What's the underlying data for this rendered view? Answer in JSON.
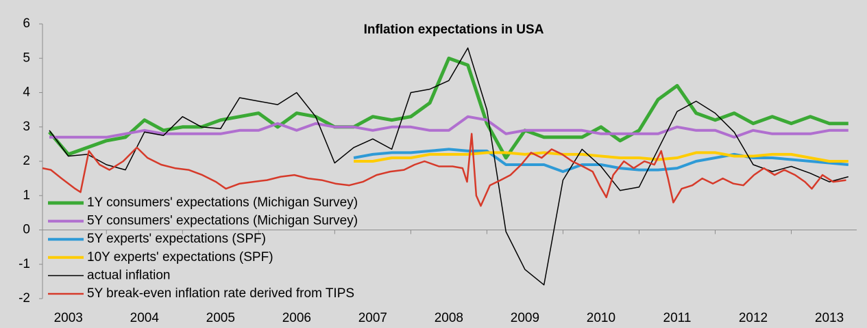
{
  "chart_data": {
    "type": "line",
    "title": "Inflation expectations in USA",
    "xlim": [
      2003.16,
      2013.86
    ],
    "ylim": [
      -2,
      6
    ],
    "yticks": [
      -2,
      -1,
      0,
      1,
      2,
      3,
      4,
      5,
      6
    ],
    "xticks": [
      {
        "value": 2003.5,
        "label": "2003"
      },
      {
        "value": 2004.5,
        "label": "2004"
      },
      {
        "value": 2005.5,
        "label": "2005"
      },
      {
        "value": 2006.5,
        "label": "2006"
      },
      {
        "value": 2007.5,
        "label": "2007"
      },
      {
        "value": 2008.5,
        "label": "2008"
      },
      {
        "value": 2009.5,
        "label": "2009"
      },
      {
        "value": 2010.5,
        "label": "2010"
      },
      {
        "value": 2011.5,
        "label": "2011"
      },
      {
        "value": 2012.5,
        "label": "2012"
      },
      {
        "value": 2013.5,
        "label": "2013"
      }
    ],
    "grid": false,
    "legend": "bottom-left",
    "series": [
      {
        "name": "1Y consumers' expectations (Michigan Survey)",
        "color": "#3ba935",
        "width": 5,
        "x": [
          2003.25,
          2003.5,
          2003.75,
          2004,
          2004.25,
          2004.5,
          2004.75,
          2005,
          2005.25,
          2005.5,
          2005.75,
          2006,
          2006.25,
          2006.5,
          2006.75,
          2007,
          2007.25,
          2007.5,
          2007.75,
          2008,
          2008.25,
          2008.5,
          2008.75,
          2009,
          2009.25,
          2009.5,
          2009.75,
          2010,
          2010.25,
          2010.5,
          2010.75,
          2011,
          2011.25,
          2011.5,
          2011.75,
          2012,
          2012.25,
          2012.5,
          2012.75,
          2013,
          2013.25,
          2013.5,
          2013.75
        ],
        "values": [
          2.85,
          2.2,
          2.4,
          2.6,
          2.7,
          3.2,
          2.9,
          3.0,
          3.0,
          3.2,
          3.3,
          3.4,
          3.0,
          3.4,
          3.3,
          3.0,
          3.0,
          3.3,
          3.2,
          3.3,
          3.7,
          5.0,
          4.8,
          3.1,
          2.1,
          2.9,
          2.7,
          2.7,
          2.7,
          3.0,
          2.6,
          2.9,
          3.8,
          4.2,
          3.4,
          3.2,
          3.4,
          3.1,
          3.3,
          3.1,
          3.3,
          3.1,
          3.1
        ]
      },
      {
        "name": "5Y consumers' expectations (Michigan Survey)",
        "color": "#b06fcf",
        "width": 4,
        "x": [
          2003.25,
          2003.5,
          2003.75,
          2004,
          2004.25,
          2004.5,
          2004.75,
          2005,
          2005.25,
          2005.5,
          2005.75,
          2006,
          2006.25,
          2006.5,
          2006.75,
          2007,
          2007.25,
          2007.5,
          2007.75,
          2008,
          2008.25,
          2008.5,
          2008.75,
          2009,
          2009.25,
          2009.5,
          2009.75,
          2010,
          2010.25,
          2010.5,
          2010.75,
          2011,
          2011.25,
          2011.5,
          2011.75,
          2012,
          2012.25,
          2012.5,
          2012.75,
          2013,
          2013.25,
          2013.5,
          2013.75
        ],
        "values": [
          2.7,
          2.7,
          2.7,
          2.7,
          2.8,
          2.9,
          2.8,
          2.8,
          2.8,
          2.8,
          2.9,
          2.9,
          3.1,
          2.9,
          3.1,
          3.0,
          3.0,
          2.9,
          3.0,
          3.0,
          2.9,
          2.9,
          3.3,
          3.2,
          2.8,
          2.9,
          2.9,
          2.9,
          2.9,
          2.8,
          2.8,
          2.8,
          2.8,
          3.0,
          2.9,
          2.9,
          2.7,
          2.9,
          2.8,
          2.8,
          2.8,
          2.9,
          2.9
        ]
      },
      {
        "name": "5Y experts' expectations (SPF)",
        "color": "#2e9ad6",
        "width": 4,
        "x": [
          2007.25,
          2007.5,
          2007.75,
          2008,
          2008.25,
          2008.5,
          2008.75,
          2009,
          2009.25,
          2009.5,
          2009.75,
          2010,
          2010.25,
          2010.5,
          2010.75,
          2011,
          2011.25,
          2011.5,
          2011.75,
          2012,
          2012.25,
          2012.5,
          2012.75,
          2013,
          2013.25,
          2013.5,
          2013.75
        ],
        "values": [
          2.1,
          2.2,
          2.25,
          2.25,
          2.3,
          2.35,
          2.3,
          2.3,
          1.9,
          1.9,
          1.9,
          1.7,
          1.9,
          1.9,
          1.8,
          1.75,
          1.75,
          1.8,
          2.0,
          2.1,
          2.2,
          2.1,
          2.1,
          2.05,
          2.0,
          1.95,
          1.9
        ]
      },
      {
        "name": "10Y experts' expectations (SPF)",
        "color": "#ffcc00",
        "width": 4,
        "x": [
          2007.25,
          2007.5,
          2007.75,
          2008,
          2008.25,
          2008.5,
          2008.75,
          2009,
          2009.25,
          2009.5,
          2009.75,
          2010,
          2010.25,
          2010.5,
          2010.75,
          2011,
          2011.25,
          2011.5,
          2011.75,
          2012,
          2012.25,
          2012.5,
          2012.75,
          2013,
          2013.25,
          2013.5,
          2013.75
        ],
        "values": [
          2.0,
          2.0,
          2.1,
          2.1,
          2.2,
          2.2,
          2.2,
          2.25,
          2.25,
          2.2,
          2.25,
          2.2,
          2.2,
          2.15,
          2.1,
          2.1,
          2.05,
          2.1,
          2.25,
          2.25,
          2.15,
          2.15,
          2.2,
          2.2,
          2.1,
          2.0,
          2.0
        ]
      },
      {
        "name": "actual inflation",
        "color": "#000000",
        "width": 1.5,
        "x": [
          2003.25,
          2003.5,
          2003.75,
          2004,
          2004.25,
          2004.5,
          2004.75,
          2005,
          2005.25,
          2005.5,
          2005.75,
          2006,
          2006.25,
          2006.5,
          2006.75,
          2007,
          2007.25,
          2007.5,
          2007.75,
          2008,
          2008.25,
          2008.5,
          2008.75,
          2009,
          2009.25,
          2009.5,
          2009.75,
          2010,
          2010.25,
          2010.5,
          2010.75,
          2011,
          2011.25,
          2011.5,
          2011.75,
          2012,
          2012.25,
          2012.5,
          2012.75,
          2013,
          2013.25,
          2013.5,
          2013.75
        ],
        "values": [
          2.9,
          2.15,
          2.2,
          1.9,
          1.75,
          2.85,
          2.75,
          3.3,
          3.0,
          2.95,
          3.85,
          3.75,
          3.65,
          4.0,
          3.3,
          1.95,
          2.4,
          2.65,
          2.35,
          4.0,
          4.1,
          4.35,
          5.3,
          3.5,
          -0.05,
          -1.15,
          -1.6,
          1.45,
          2.35,
          1.85,
          1.15,
          1.25,
          2.35,
          3.45,
          3.75,
          3.4,
          2.85,
          1.9,
          1.7,
          1.85,
          1.65,
          1.4,
          1.55
        ]
      },
      {
        "name": "5Y break-even inflation rate derived from TIPS",
        "color": "#d63a2a",
        "width": 2.5,
        "x": [
          2003.16,
          2003.27,
          2003.41,
          2003.59,
          2003.66,
          2003.77,
          2003.91,
          2004.04,
          2004.22,
          2004.4,
          2004.54,
          2004.72,
          2004.9,
          2005.08,
          2005.26,
          2005.44,
          2005.57,
          2005.75,
          2005.93,
          2006.11,
          2006.29,
          2006.47,
          2006.65,
          2006.83,
          2007.01,
          2007.19,
          2007.37,
          2007.55,
          2007.73,
          2007.91,
          2008.05,
          2008.18,
          2008.37,
          2008.55,
          2008.68,
          2008.74,
          2008.8,
          2008.86,
          2008.92,
          2009.04,
          2009.18,
          2009.31,
          2009.45,
          2009.58,
          2009.72,
          2009.85,
          2009.99,
          2010.12,
          2010.26,
          2010.39,
          2010.48,
          2010.57,
          2010.66,
          2010.8,
          2010.93,
          2011.07,
          2011.2,
          2011.29,
          2011.38,
          2011.45,
          2011.56,
          2011.7,
          2011.83,
          2011.97,
          2012.1,
          2012.24,
          2012.37,
          2012.51,
          2012.64,
          2012.78,
          2012.91,
          2013.05,
          2013.18,
          2013.27,
          2013.41,
          2013.55,
          2013.72
        ],
        "values": [
          1.8,
          1.75,
          1.5,
          1.2,
          1.1,
          2.3,
          1.9,
          1.75,
          2.0,
          2.4,
          2.1,
          1.9,
          1.8,
          1.75,
          1.6,
          1.4,
          1.2,
          1.35,
          1.4,
          1.45,
          1.55,
          1.6,
          1.5,
          1.45,
          1.35,
          1.3,
          1.4,
          1.6,
          1.7,
          1.75,
          1.9,
          2.0,
          1.85,
          1.85,
          1.8,
          1.4,
          2.8,
          1.0,
          0.7,
          1.3,
          1.45,
          1.6,
          1.9,
          2.25,
          2.1,
          2.35,
          2.2,
          2.0,
          1.85,
          1.7,
          1.3,
          0.95,
          1.6,
          2.0,
          1.8,
          2.0,
          1.9,
          2.3,
          1.5,
          0.8,
          1.2,
          1.3,
          1.5,
          1.35,
          1.5,
          1.35,
          1.3,
          1.6,
          1.8,
          1.6,
          1.75,
          1.6,
          1.4,
          1.2,
          1.6,
          1.4,
          1.45
        ]
      }
    ]
  }
}
